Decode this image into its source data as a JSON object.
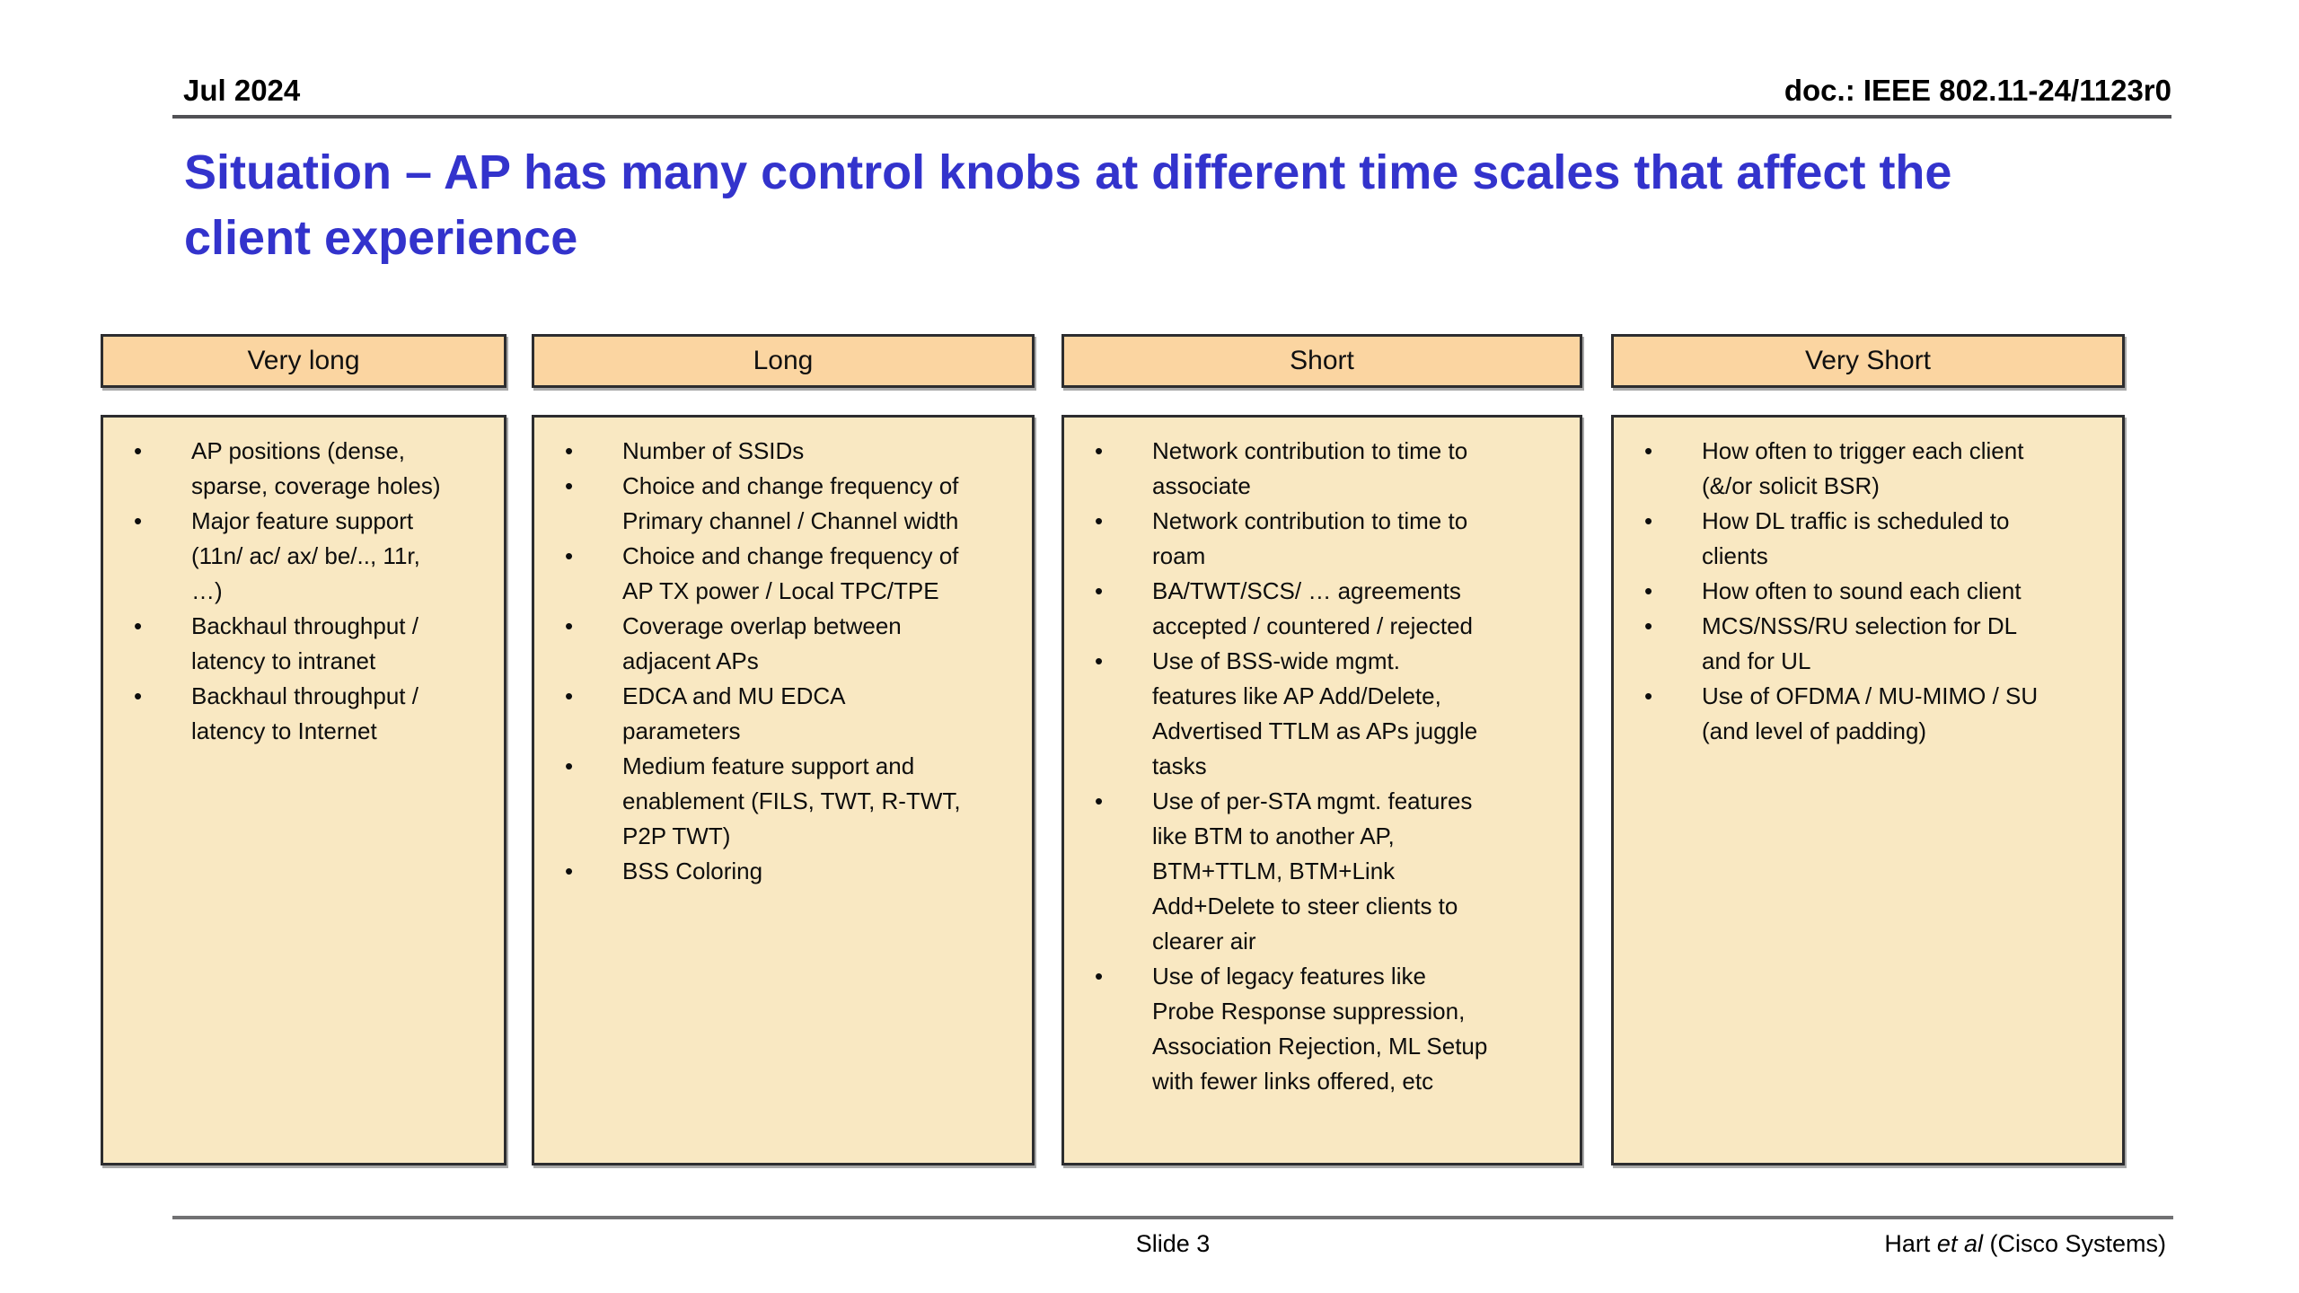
{
  "header": {
    "date": "Jul 2024",
    "doc_number": "doc.: IEEE 802.11-24/1123r0"
  },
  "title": "Situation – AP has many control knobs at different time scales that affect the client experience",
  "columns": [
    {
      "header": "Very long",
      "bullets": [
        "AP positions (dense, sparse, coverage holes)",
        "Major feature support (11n/ ac/ ax/ be/.., 11r, …)",
        "Backhaul throughput / latency to intranet",
        "Backhaul throughput / latency to Internet"
      ]
    },
    {
      "header": "Long",
      "bullets": [
        "Number of SSIDs",
        "Choice and change frequency of Primary channel / Channel width",
        "Choice and change frequency of AP TX power / Local TPC/TPE",
        "Coverage overlap between adjacent APs",
        "EDCA and MU EDCA parameters",
        "Medium feature support and enablement (FILS, TWT, R-TWT, P2P TWT)",
        "BSS Coloring"
      ]
    },
    {
      "header": "Short",
      "bullets": [
        "Network contribution to time to associate",
        "Network contribution to time to roam",
        "BA/TWT/SCS/ … agreements accepted / countered / rejected",
        "Use of BSS-wide mgmt. features like AP Add/Delete, Advertised TTLM as APs juggle tasks",
        "Use of per-STA mgmt. features like BTM to another AP, BTM+TTLM, BTM+Link Add+Delete to steer clients to clearer air",
        "Use of legacy features like Probe Response suppression, Association Rejection, ML Setup with fewer links offered, etc"
      ]
    },
    {
      "header": "Very Short",
      "bullets": [
        "How often to trigger each client (&/or solicit BSR)",
        "How DL traffic is scheduled to clients",
        "How often to sound each client",
        "MCS/NSS/RU selection for DL and for UL",
        "Use of OFDMA / MU-MIMO / SU (and level of padding)"
      ]
    }
  ],
  "footer": {
    "slide_number": "Slide 3",
    "author_pre": "Hart ",
    "author_italic": "et al",
    "author_post": " (Cisco Systems)"
  },
  "colors": {
    "title_blue": "#3333CC",
    "column_header_fill": "#FBD5A1",
    "column_body_fill": "#F9E8C2",
    "box_border": "#2d2d2f",
    "rule_gray": "#515155"
  }
}
